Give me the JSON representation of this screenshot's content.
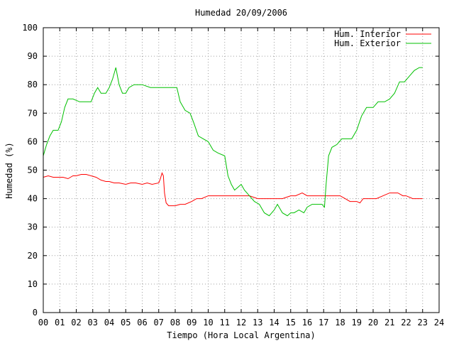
{
  "chart_data": {
    "type": "line",
    "title": "Humedad 20/09/2006",
    "xlabel": "Tiempo (Hora Local Argentina)",
    "ylabel": "Humedad (%)",
    "xlim": [
      0,
      24
    ],
    "ylim": [
      0,
      100
    ],
    "xticks": [
      0,
      1,
      2,
      3,
      4,
      5,
      6,
      7,
      8,
      9,
      10,
      11,
      12,
      13,
      14,
      15,
      16,
      17,
      18,
      19,
      20,
      21,
      22,
      23,
      24
    ],
    "xtick_labels": [
      "00",
      "01",
      "02",
      "03",
      "04",
      "05",
      "06",
      "07",
      "08",
      "09",
      "10",
      "11",
      "12",
      "13",
      "14",
      "15",
      "16",
      "17",
      "18",
      "19",
      "20",
      "21",
      "22",
      "23",
      "24"
    ],
    "yticks": [
      0,
      10,
      20,
      30,
      40,
      50,
      60,
      70,
      80,
      90,
      100
    ],
    "ytick_labels": [
      "0",
      "10",
      "20",
      "30",
      "40",
      "50",
      "60",
      "70",
      "80",
      "90",
      "100"
    ],
    "grid": true,
    "legend_position": "top-right",
    "series": [
      {
        "name": "Hum. Interior",
        "color": "#ff0000",
        "points": [
          [
            0.0,
            47.5
          ],
          [
            0.3,
            48
          ],
          [
            0.6,
            47.5
          ],
          [
            0.9,
            47.5
          ],
          [
            1.2,
            47.5
          ],
          [
            1.5,
            47
          ],
          [
            1.8,
            48
          ],
          [
            2.0,
            48
          ],
          [
            2.3,
            48.5
          ],
          [
            2.6,
            48.5
          ],
          [
            2.9,
            48
          ],
          [
            3.2,
            47.5
          ],
          [
            3.5,
            46.5
          ],
          [
            3.8,
            46
          ],
          [
            4.0,
            46
          ],
          [
            4.3,
            45.5
          ],
          [
            4.6,
            45.5
          ],
          [
            5.0,
            45
          ],
          [
            5.3,
            45.5
          ],
          [
            5.6,
            45.5
          ],
          [
            6.0,
            45
          ],
          [
            6.3,
            45.5
          ],
          [
            6.6,
            45
          ],
          [
            7.0,
            45.5
          ],
          [
            7.1,
            47
          ],
          [
            7.2,
            49
          ],
          [
            7.28,
            48
          ],
          [
            7.35,
            42
          ],
          [
            7.45,
            38.5
          ],
          [
            7.6,
            37.5
          ],
          [
            8.0,
            37.5
          ],
          [
            8.3,
            38
          ],
          [
            8.6,
            38
          ],
          [
            9.0,
            39
          ],
          [
            9.3,
            40
          ],
          [
            9.6,
            40
          ],
          [
            10.0,
            41
          ],
          [
            10.5,
            41
          ],
          [
            11.0,
            41
          ],
          [
            11.5,
            41
          ],
          [
            12.0,
            41
          ],
          [
            12.5,
            41
          ],
          [
            13.0,
            40
          ],
          [
            13.5,
            40
          ],
          [
            14.0,
            40
          ],
          [
            14.5,
            40
          ],
          [
            15.0,
            41
          ],
          [
            15.3,
            41
          ],
          [
            15.7,
            42
          ],
          [
            16.0,
            41
          ],
          [
            16.5,
            41
          ],
          [
            17.0,
            41
          ],
          [
            17.5,
            41
          ],
          [
            18.0,
            41
          ],
          [
            18.3,
            40
          ],
          [
            18.6,
            39
          ],
          [
            19.0,
            39
          ],
          [
            19.2,
            38.5
          ],
          [
            19.4,
            40
          ],
          [
            19.8,
            40
          ],
          [
            20.2,
            40
          ],
          [
            20.6,
            41
          ],
          [
            21.0,
            42
          ],
          [
            21.5,
            42
          ],
          [
            21.8,
            41
          ],
          [
            22.0,
            41
          ],
          [
            22.4,
            40
          ],
          [
            22.8,
            40
          ],
          [
            23.0,
            40
          ]
        ]
      },
      {
        "name": "Hum. Exterior",
        "color": "#00c000",
        "points": [
          [
            0.0,
            55
          ],
          [
            0.2,
            59
          ],
          [
            0.4,
            62
          ],
          [
            0.6,
            64
          ],
          [
            0.9,
            64
          ],
          [
            1.1,
            67
          ],
          [
            1.3,
            72
          ],
          [
            1.5,
            75
          ],
          [
            1.8,
            75
          ],
          [
            2.2,
            74
          ],
          [
            2.6,
            74
          ],
          [
            2.9,
            74
          ],
          [
            3.1,
            77
          ],
          [
            3.3,
            79
          ],
          [
            3.5,
            77
          ],
          [
            3.8,
            77
          ],
          [
            4.0,
            79
          ],
          [
            4.2,
            82
          ],
          [
            4.4,
            86
          ],
          [
            4.6,
            80
          ],
          [
            4.8,
            77
          ],
          [
            5.0,
            77
          ],
          [
            5.2,
            79
          ],
          [
            5.5,
            80
          ],
          [
            6.0,
            80
          ],
          [
            6.5,
            79
          ],
          [
            7.0,
            79
          ],
          [
            7.5,
            79
          ],
          [
            7.9,
            79
          ],
          [
            8.1,
            79
          ],
          [
            8.3,
            74
          ],
          [
            8.6,
            71
          ],
          [
            8.9,
            70
          ],
          [
            9.1,
            67
          ],
          [
            9.4,
            62
          ],
          [
            9.7,
            61
          ],
          [
            10.0,
            60
          ],
          [
            10.3,
            57
          ],
          [
            10.6,
            56
          ],
          [
            11.0,
            55
          ],
          [
            11.2,
            48
          ],
          [
            11.4,
            45
          ],
          [
            11.6,
            43
          ],
          [
            11.8,
            44
          ],
          [
            12.0,
            45
          ],
          [
            12.2,
            43
          ],
          [
            12.5,
            41
          ],
          [
            12.8,
            39
          ],
          [
            13.1,
            38
          ],
          [
            13.4,
            35
          ],
          [
            13.7,
            34
          ],
          [
            14.0,
            36
          ],
          [
            14.2,
            38
          ],
          [
            14.5,
            35
          ],
          [
            14.8,
            34
          ],
          [
            15.0,
            35
          ],
          [
            15.2,
            35
          ],
          [
            15.5,
            36
          ],
          [
            15.8,
            35
          ],
          [
            16.0,
            37
          ],
          [
            16.3,
            38
          ],
          [
            16.6,
            38
          ],
          [
            16.9,
            38
          ],
          [
            17.05,
            37
          ],
          [
            17.15,
            45
          ],
          [
            17.3,
            55
          ],
          [
            17.5,
            58
          ],
          [
            17.8,
            59
          ],
          [
            18.1,
            61
          ],
          [
            18.4,
            61
          ],
          [
            18.7,
            61
          ],
          [
            19.0,
            64
          ],
          [
            19.3,
            69
          ],
          [
            19.6,
            72
          ],
          [
            20.0,
            72
          ],
          [
            20.3,
            74
          ],
          [
            20.7,
            74
          ],
          [
            21.0,
            75
          ],
          [
            21.3,
            77
          ],
          [
            21.6,
            81
          ],
          [
            21.9,
            81
          ],
          [
            22.2,
            83
          ],
          [
            22.5,
            85
          ],
          [
            22.8,
            86
          ],
          [
            23.0,
            86
          ]
        ]
      }
    ]
  }
}
